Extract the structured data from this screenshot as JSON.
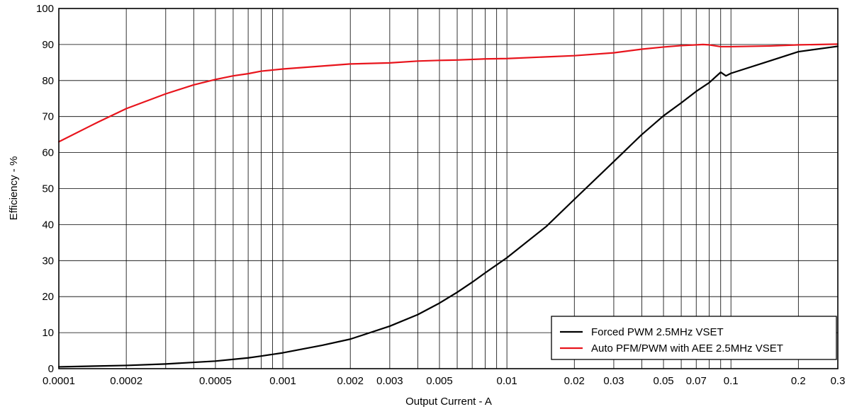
{
  "chart_data": {
    "type": "line",
    "xlabel": "Output Current - A",
    "ylabel": "Efficiency - %",
    "x_scale": "log",
    "xlim": [
      0.0001,
      0.3
    ],
    "ylim": [
      0,
      100
    ],
    "grid": true,
    "legend_position": "bottom-right",
    "x_tick_labels": [
      {
        "value": 0.0001,
        "label": "0.0001"
      },
      {
        "value": 0.0002,
        "label": "0.0002"
      },
      {
        "value": 0.0005,
        "label": "0.0005"
      },
      {
        "value": 0.001,
        "label": "0.001"
      },
      {
        "value": 0.002,
        "label": "0.002"
      },
      {
        "value": 0.003,
        "label": "0.003"
      },
      {
        "value": 0.005,
        "label": "0.005"
      },
      {
        "value": 0.01,
        "label": "0.01"
      },
      {
        "value": 0.02,
        "label": "0.02"
      },
      {
        "value": 0.03,
        "label": "0.03"
      },
      {
        "value": 0.05,
        "label": "0.05"
      },
      {
        "value": 0.07,
        "label": "0.07"
      },
      {
        "value": 0.1,
        "label": "0.1"
      },
      {
        "value": 0.2,
        "label": "0.2"
      },
      {
        "value": 0.3,
        "label": "0.3"
      }
    ],
    "y_ticks": [
      0,
      10,
      20,
      30,
      40,
      50,
      60,
      70,
      80,
      90,
      100
    ],
    "series": [
      {
        "name": "Forced PWM 2.5MHz VSET",
        "color": "#000000",
        "x": [
          0.0001,
          0.0002,
          0.0003,
          0.0005,
          0.0007,
          0.0008,
          0.001,
          0.0015,
          0.002,
          0.003,
          0.004,
          0.005,
          0.006,
          0.007,
          0.008,
          0.01,
          0.015,
          0.02,
          0.03,
          0.04,
          0.05,
          0.06,
          0.07,
          0.08,
          0.09,
          0.095,
          0.1,
          0.15,
          0.2,
          0.3
        ],
        "y": [
          0.5,
          0.9,
          1.3,
          2.1,
          3.0,
          3.5,
          4.4,
          6.5,
          8.2,
          11.8,
          15.0,
          18.2,
          21.2,
          24.0,
          26.6,
          30.8,
          39.5,
          47.0,
          57.5,
          65.0,
          70.2,
          73.8,
          77.0,
          79.4,
          82.3,
          81.3,
          82.0,
          85.5,
          88.0,
          89.5
        ]
      },
      {
        "name": "Auto PFM/PWM with AEE 2.5MHz VSET",
        "color": "#e8141c",
        "x": [
          0.0001,
          0.00015,
          0.0002,
          0.0003,
          0.0004,
          0.0005,
          0.0006,
          0.0007,
          0.0008,
          0.001,
          0.002,
          0.003,
          0.004,
          0.005,
          0.006,
          0.008,
          0.01,
          0.02,
          0.03,
          0.04,
          0.05,
          0.06,
          0.07,
          0.075,
          0.08,
          0.09,
          0.1,
          0.15,
          0.2,
          0.3
        ],
        "y": [
          63.0,
          68.5,
          72.2,
          76.3,
          78.8,
          80.3,
          81.3,
          81.9,
          82.6,
          83.2,
          84.6,
          84.9,
          85.4,
          85.6,
          85.7,
          86.0,
          86.1,
          86.9,
          87.7,
          88.7,
          89.3,
          89.7,
          89.9,
          90.0,
          89.9,
          89.4,
          89.4,
          89.6,
          89.9,
          90.1
        ]
      }
    ]
  }
}
